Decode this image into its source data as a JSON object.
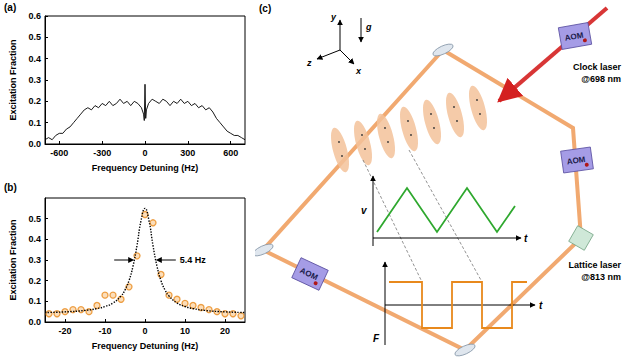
{
  "chart_data": [
    {
      "type": "line",
      "label": "(a)",
      "x_label": "Frequency Detuning (Hz)",
      "y_label": "Excitation Fraction",
      "xlim": [
        -700,
        700
      ],
      "xticks": [
        -600,
        -300,
        0,
        300,
        600
      ],
      "ylim": [
        0,
        0.6
      ],
      "yticks": [
        {
          "value": 0,
          "label": "0.0"
        },
        {
          "value": 0.1,
          "label": "0.1"
        },
        {
          "value": 0.2,
          "label": "0.2"
        },
        {
          "value": 0.3,
          "label": "0.3"
        },
        {
          "value": 0.4,
          "label": "0.4"
        },
        {
          "value": 0.5,
          "label": "0.5"
        },
        {
          "value": 0.6,
          "label": "0.6"
        }
      ],
      "grid": false,
      "series": [
        {
          "type": "line",
          "color": "#000000",
          "line_style": "solid",
          "marker": "none",
          "x": [
            -700,
            -675,
            -650,
            -625,
            -600,
            -575,
            -550,
            -525,
            -500,
            -475,
            -450,
            -425,
            -400,
            -375,
            -350,
            -325,
            -300,
            -275,
            -250,
            -225,
            -200,
            -175,
            -150,
            -125,
            -100,
            -75,
            -50,
            -25,
            -10,
            -5,
            0,
            5,
            10,
            25,
            50,
            75,
            100,
            125,
            150,
            175,
            200,
            225,
            250,
            275,
            300,
            325,
            350,
            375,
            400,
            425,
            450,
            475,
            500,
            525,
            550,
            575,
            600,
            625,
            650,
            675,
            700
          ],
          "values": [
            0.02,
            0.03,
            0.02,
            0.04,
            0.05,
            0.05,
            0.07,
            0.08,
            0.1,
            0.12,
            0.14,
            0.16,
            0.17,
            0.16,
            0.18,
            0.17,
            0.19,
            0.18,
            0.2,
            0.18,
            0.19,
            0.21,
            0.19,
            0.2,
            0.18,
            0.2,
            0.19,
            0.17,
            0.14,
            0.11,
            0.28,
            0.12,
            0.16,
            0.19,
            0.21,
            0.2,
            0.19,
            0.21,
            0.2,
            0.18,
            0.2,
            0.19,
            0.21,
            0.19,
            0.2,
            0.18,
            0.19,
            0.17,
            0.18,
            0.16,
            0.17,
            0.15,
            0.12,
            0.1,
            0.08,
            0.06,
            0.05,
            0.04,
            0.04,
            0.03,
            0.02
          ]
        }
      ]
    },
    {
      "type": "scatter",
      "label": "(b)",
      "x_label": "Frequency Detuning (Hz)",
      "y_label": "Excitation Fraction",
      "xlim": [
        -25,
        25
      ],
      "xticks": [
        -20,
        -10,
        0,
        10,
        20
      ],
      "ylim": [
        0,
        0.6
      ],
      "yticks": [
        {
          "value": 0,
          "label": "0.0"
        },
        {
          "value": 0.1,
          "label": "0.1"
        },
        {
          "value": 0.2,
          "label": "0.2"
        },
        {
          "value": 0.3,
          "label": "0.3"
        },
        {
          "value": 0.4,
          "label": "0.4"
        },
        {
          "value": 0.5,
          "label": "0.5"
        }
      ],
      "grid": false,
      "annotation": {
        "text": "5.4 Hz",
        "x": [
          -2.7,
          2.7
        ],
        "y": 0.3
      },
      "series": [
        {
          "type": "scatter",
          "color": "#e8891c",
          "marker": "circle",
          "x": [
            -24,
            -22,
            -20,
            -18,
            -16,
            -14,
            -12,
            -10,
            -8,
            -6,
            -4,
            -2,
            0,
            2,
            4,
            6,
            8,
            10,
            12,
            14,
            16,
            18,
            20,
            22,
            24
          ],
          "values": [
            0.04,
            0.04,
            0.05,
            0.06,
            0.06,
            0.05,
            0.08,
            0.13,
            0.13,
            0.11,
            0.17,
            0.32,
            0.52,
            0.48,
            0.23,
            0.13,
            0.11,
            0.09,
            0.08,
            0.07,
            0.06,
            0.05,
            0.04,
            0.04,
            0.03
          ]
        },
        {
          "type": "line",
          "color": "#000000",
          "line_style": "dotted",
          "marker": "none",
          "x": [
            -25,
            -20,
            -15,
            -12,
            -10,
            -8,
            -6,
            -5,
            -4,
            -3,
            -2,
            -1,
            0,
            1,
            2,
            3,
            4,
            5,
            6,
            8,
            10,
            12,
            15,
            20,
            25
          ],
          "values": [
            0.046,
            0.049,
            0.056,
            0.065,
            0.075,
            0.092,
            0.126,
            0.155,
            0.2,
            0.27,
            0.37,
            0.49,
            0.55,
            0.49,
            0.37,
            0.27,
            0.2,
            0.155,
            0.126,
            0.092,
            0.075,
            0.065,
            0.056,
            0.049,
            0.046
          ]
        }
      ]
    }
  ],
  "diagram": {
    "label": "(c)",
    "axes": {
      "x": "x",
      "y": "y",
      "z": "z",
      "gravity": "g"
    },
    "aoms": [
      "AOM",
      "AOM",
      "AOM"
    ],
    "clock_laser": {
      "name": "Clock laser",
      "wavelength": "@698 nm"
    },
    "lattice_laser": {
      "name": "Lattice laser",
      "wavelength": "@813 nm"
    },
    "velocity_plot": {
      "y_label": "v",
      "x_label": "t"
    },
    "force_plot": {
      "y_label": "F",
      "x_label": "t"
    }
  }
}
